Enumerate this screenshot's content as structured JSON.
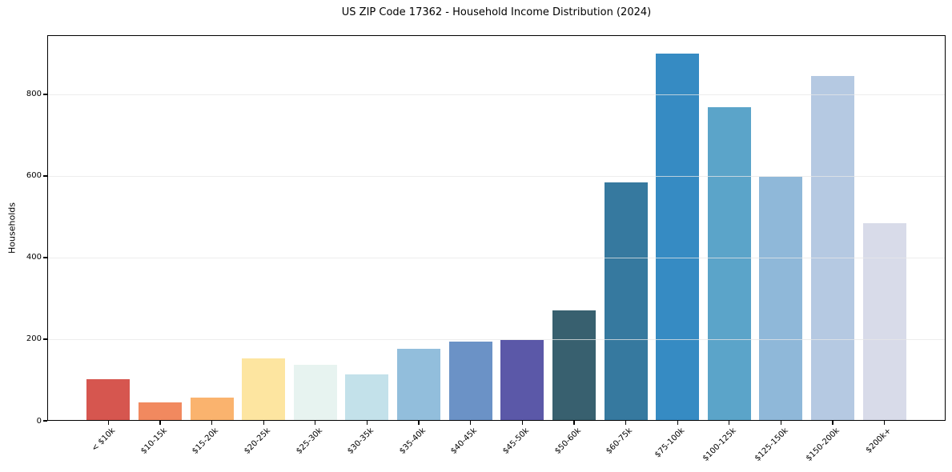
{
  "title": "US ZIP Code 17362 - Household Income Distribution (2024)",
  "chart_data": {
    "type": "bar",
    "title": "US ZIP Code 17362 - Household Income Distribution (2024)",
    "xlabel": "",
    "ylabel": "Households",
    "categories": [
      "< $10k",
      "$10-15k",
      "$15-20k",
      "$20-25k",
      "$25-30k",
      "$30-35k",
      "$35-40k",
      "$40-45k",
      "$45-50k",
      "$50-60k",
      "$60-75k",
      "$75-100k",
      "$100-125k",
      "$125-150k",
      "$150-200k",
      "$200k+"
    ],
    "values": [
      101,
      45,
      57,
      152,
      137,
      113,
      177,
      195,
      198,
      270,
      585,
      900,
      768,
      598,
      845,
      485
    ],
    "bar_colors": [
      "#d6564f",
      "#f1895f",
      "#fab36e",
      "#fde5a0",
      "#e7f3f0",
      "#c3e1ea",
      "#92bedc",
      "#6b92c6",
      "#5b58a8",
      "#38606f",
      "#36799f",
      "#368bc3",
      "#5ba4c9",
      "#8fb8d9",
      "#b5c9e2",
      "#d8dbe9"
    ],
    "ylim": [
      0,
      945
    ],
    "yticks": [
      0,
      200,
      400,
      600,
      800
    ],
    "grid": {
      "axis": "y",
      "color": "#e7e7e7",
      "drawn_above_bars": true
    },
    "legend_position": "none",
    "colors": {
      "background": "#ffffff",
      "spine": "#000000",
      "text": "#000000"
    }
  }
}
